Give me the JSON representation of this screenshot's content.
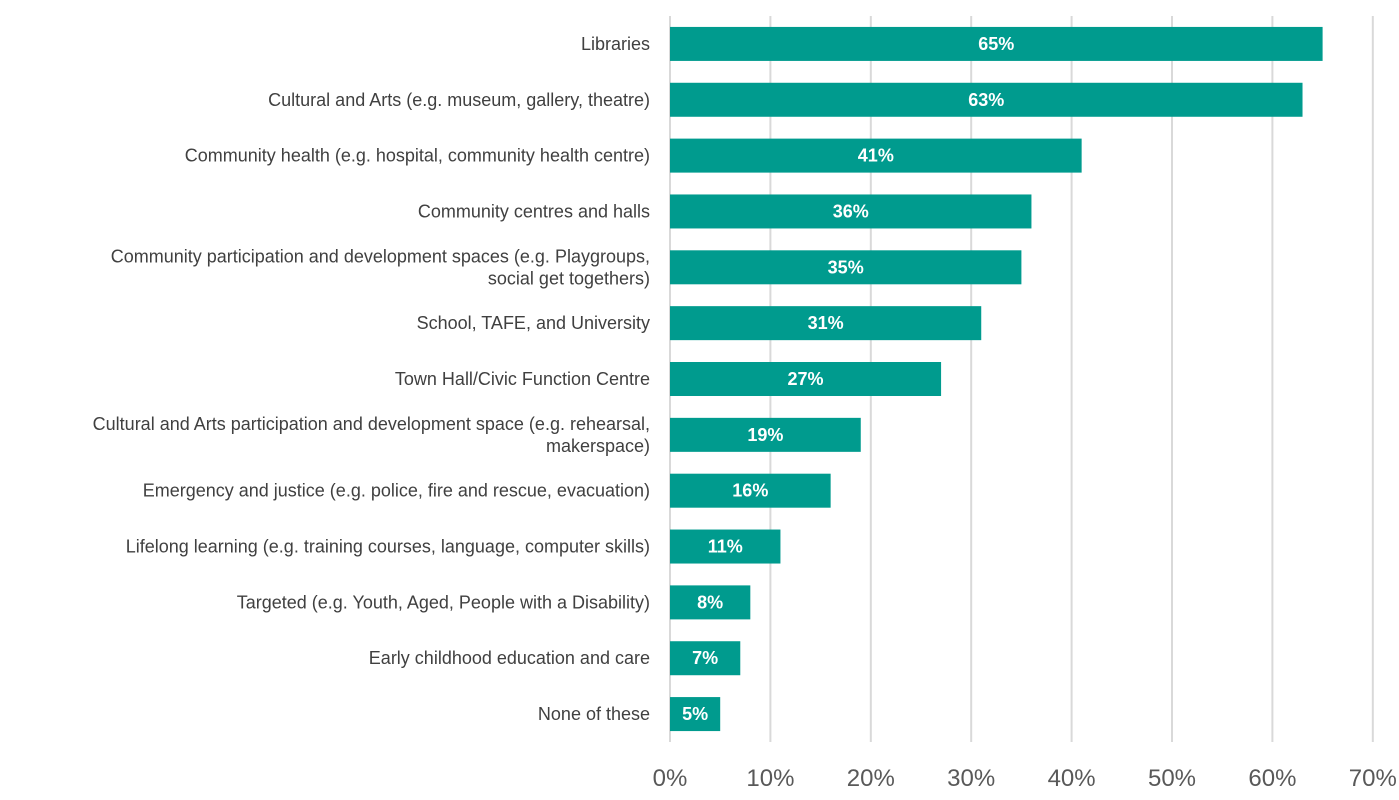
{
  "chart_data": {
    "type": "bar",
    "orientation": "horizontal",
    "categories": [
      [
        "Libraries"
      ],
      [
        "Cultural and Arts (e.g. museum, gallery, theatre)"
      ],
      [
        "Community health (e.g. hospital, community health centre)"
      ],
      [
        "Community centres and halls"
      ],
      [
        "Community participation and development spaces (e.g. Playgroups,",
        "social get togethers)"
      ],
      [
        "School, TAFE, and University"
      ],
      [
        "Town Hall/Civic Function Centre"
      ],
      [
        "Cultural and Arts participation and development space (e.g. rehearsal,",
        "makerspace)"
      ],
      [
        "Emergency and justice (e.g. police, fire and rescue, evacuation)"
      ],
      [
        "Lifelong learning (e.g. training courses, language, computer skills)"
      ],
      [
        "Targeted (e.g. Youth, Aged, People with a Disability)"
      ],
      [
        "Early childhood education and care"
      ],
      [
        "None of these"
      ]
    ],
    "values": [
      65,
      63,
      41,
      36,
      35,
      31,
      27,
      19,
      16,
      11,
      8,
      7,
      5
    ],
    "data_labels": [
      "65%",
      "63%",
      "41%",
      "36%",
      "35%",
      "31%",
      "27%",
      "19%",
      "16%",
      "11%",
      "8%",
      "7%",
      "5%"
    ],
    "x_ticks": [
      "0%",
      "10%",
      "20%",
      "30%",
      "40%",
      "50%",
      "60%",
      "70%"
    ],
    "xlim": [
      0,
      70
    ],
    "grid": true,
    "bar_color": "#009b8e",
    "title": "",
    "xlabel": "",
    "ylabel": ""
  }
}
